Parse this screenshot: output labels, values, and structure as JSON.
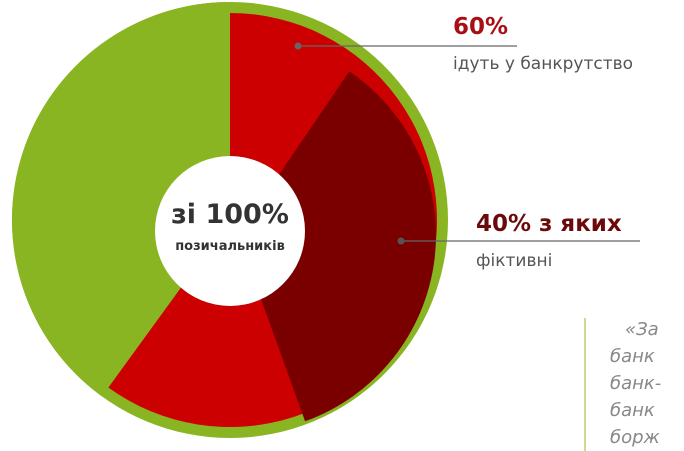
{
  "chart_data": {
    "type": "pie",
    "donut": true,
    "slices": [
      {
        "label": "60%",
        "value": 60,
        "color": "#cc0000"
      },
      {
        "label": "40% з яких",
        "value": 40,
        "color": "#8ab523"
      }
    ],
    "sub_slice": {
      "label": "40% з яких",
      "value_pct_of_total": 35,
      "color": "#7a0000"
    },
    "center": {
      "title": "зі 100%",
      "subtitle": "позичальників"
    },
    "annotations": [
      {
        "value": "60%",
        "text": "ідуть у банкрутство",
        "color": "#a80f14"
      },
      {
        "value": "40% з яких",
        "text": "фіктивні",
        "color": "#6b0a0a"
      }
    ]
  },
  "quote": {
    "lines": [
      "«За",
      "банк",
      "банк-",
      "банк",
      "борж"
    ]
  },
  "colors": {
    "red": "#cc0000",
    "dark_red": "#7a0000",
    "green": "#8ab523",
    "quote_line": "#b7d06a"
  }
}
